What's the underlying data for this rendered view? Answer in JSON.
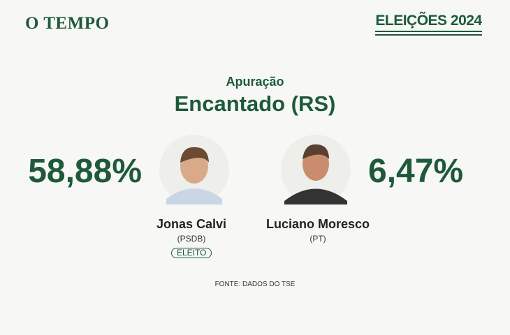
{
  "header": {
    "logo": "O TEMPO",
    "badge": "ELEIÇÕES 2024"
  },
  "subtitle": "Apuração",
  "title": "Encantado (RS)",
  "candidates": [
    {
      "percent": "58,88%",
      "name": "Jonas Calvi",
      "party": "(PSDB)",
      "status": "ELEITO"
    },
    {
      "percent": "6,47%",
      "name": "Luciano Moresco",
      "party": "(PT)"
    }
  ],
  "source": "FONTE: DADOS DO TSE"
}
